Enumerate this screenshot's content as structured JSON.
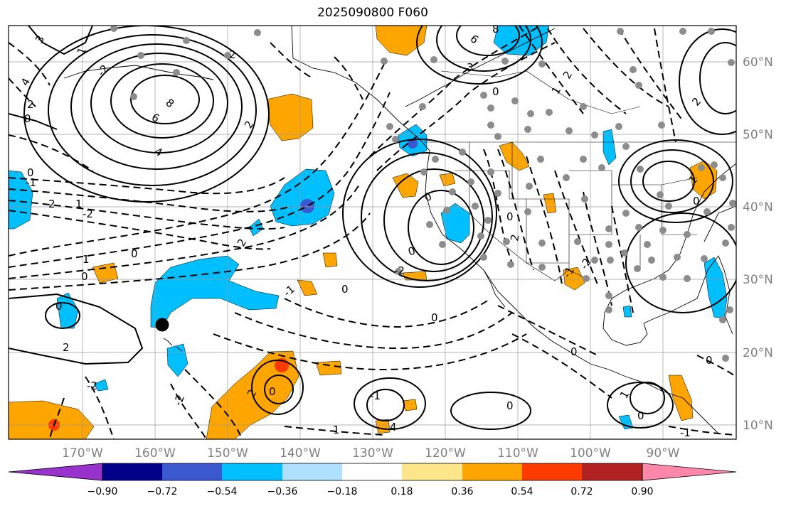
{
  "title": "2025090800 F060",
  "map": {
    "lat_labels": [
      "60°N",
      "50°N",
      "40°N",
      "30°N",
      "20°N",
      "10°N"
    ],
    "lon_labels": [
      "170°W",
      "160°W",
      "150°W",
      "140°W",
      "130°W",
      "120°W",
      "110°W",
      "100°W",
      "90°W"
    ],
    "contour_labels": [
      "3",
      "4",
      "2",
      "0",
      "1",
      "-2",
      "2",
      "6",
      "8",
      "4",
      "2",
      "0",
      "2",
      "-2",
      "1",
      "2",
      "-1",
      "0",
      "1",
      "0",
      "0",
      "2",
      "-2",
      "-2",
      "-1",
      "0",
      "1",
      "2",
      "0",
      "-1",
      "4",
      "0",
      "-2",
      "0",
      "0",
      "0",
      "0",
      "2",
      "-1",
      "-2",
      "3",
      "6",
      "8",
      "0",
      "1",
      "2",
      "0",
      "1",
      "0",
      "-1",
      "0",
      "1",
      "0",
      "2"
    ],
    "colors": {
      "positive_light": "#fde68a",
      "positive_med": "#ffa500",
      "positive_strong": "#ff3a00",
      "negative_light": "#b0e0ff",
      "negative_med": "#00bfff",
      "negative_strong": "#3a58d0",
      "station": "#8c8c8c"
    }
  },
  "colorbar": {
    "ticks": [
      "−0.90",
      "−0.72",
      "−0.54",
      "−0.36",
      "−0.18",
      "0.18",
      "0.36",
      "0.54",
      "0.72",
      "0.90"
    ],
    "colors": [
      "#9932cc",
      "#00008b",
      "#3a58d0",
      "#00bfff",
      "#b0e0ff",
      "#ffffff",
      "#fde68a",
      "#ffa500",
      "#ff3a00",
      "#b22222",
      "#ff88aa"
    ]
  }
}
